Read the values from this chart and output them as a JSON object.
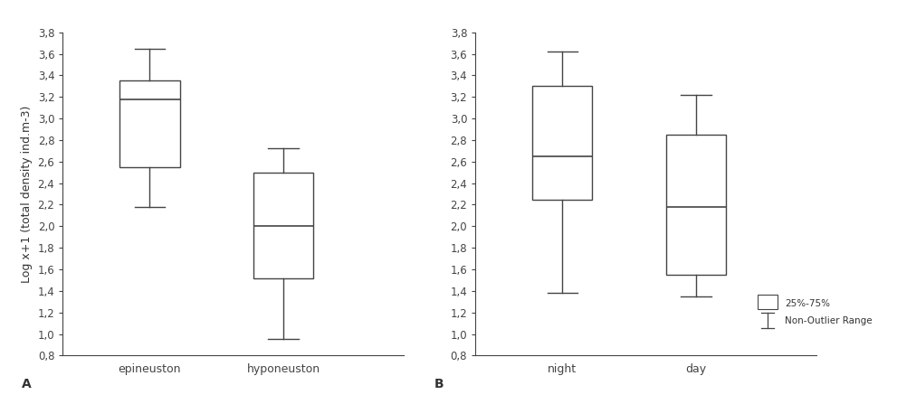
{
  "panel_A": {
    "label": "A",
    "categories": [
      "epineuston",
      "hyponeuston"
    ],
    "boxes": [
      {
        "median": 3.18,
        "q1": 2.55,
        "q3": 3.35,
        "whislo": 2.18,
        "whishi": 3.65
      },
      {
        "median": 2.0,
        "q1": 1.52,
        "q3": 2.5,
        "whislo": 0.95,
        "whishi": 2.72
      }
    ]
  },
  "panel_B": {
    "label": "B",
    "categories": [
      "night",
      "day"
    ],
    "boxes": [
      {
        "median": 2.65,
        "q1": 2.25,
        "q3": 3.3,
        "whislo": 1.38,
        "whishi": 3.62
      },
      {
        "median": 2.18,
        "q1": 1.55,
        "q3": 2.85,
        "whislo": 1.35,
        "whishi": 3.22
      }
    ]
  },
  "ylim": [
    0.8,
    3.8
  ],
  "yticks": [
    0.8,
    1.0,
    1.2,
    1.4,
    1.6,
    1.8,
    2.0,
    2.2,
    2.4,
    2.6,
    2.8,
    3.0,
    3.2,
    3.4,
    3.6,
    3.8
  ],
  "ylabel": "Log x+1 (total density ind.m-3)",
  "box_color": "white",
  "box_edgecolor": "#444444",
  "median_color": "#444444",
  "whisker_color": "#444444",
  "cap_color": "#444444",
  "legend_label_box": "25%-75%",
  "legend_label_whisker": "Non-Outlier Range",
  "background_color": "white",
  "fontsize_ticks": 8.5,
  "fontsize_labels": 9,
  "fontsize_panel_label": 10,
  "box_width": 0.45,
  "positions": [
    1,
    2
  ],
  "xlim": [
    0.35,
    2.9
  ]
}
